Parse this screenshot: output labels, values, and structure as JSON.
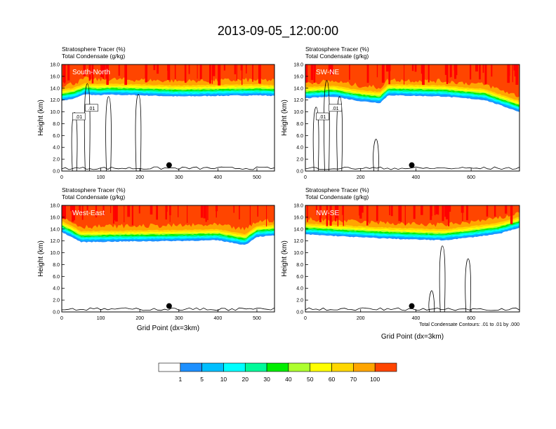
{
  "figure": {
    "title": "2013-09-05_12:00:00",
    "footnote": "Total Condensate Contours: .01 to .01 by .000"
  },
  "colorbar": {
    "labels": [
      "1",
      "5",
      "10",
      "20",
      "30",
      "40",
      "50",
      "60",
      "70",
      "100"
    ],
    "colors": [
      "#ffffff",
      "#1e90ff",
      "#00bfff",
      "#00ffff",
      "#00fa9a",
      "#00ee00",
      "#adff2f",
      "#ffff00",
      "#ffd700",
      "#ffa500",
      "#ff4500",
      "#ff0000"
    ]
  },
  "chart_data": [
    {
      "type": "heatmap",
      "panel_label": "South-North",
      "subtitle_line1": "Stratosphere Tracer   (%)",
      "subtitle_line2": "Total Condensate   (g/kg)",
      "xlabel": "",
      "ylabel": "Height (km)",
      "xlim": [
        0,
        545
      ],
      "ylim": [
        0,
        18
      ],
      "xticks": [
        "0",
        "100",
        "200",
        "300",
        "400",
        "500"
      ],
      "yticks": [
        "0.0",
        "2.0",
        "4.0",
        "6.0",
        "8.0",
        "10.0",
        "12.0",
        "14.0",
        "16.0",
        "18.0"
      ],
      "contour_labels": [
        ".01",
        ".01"
      ],
      "marker_x": 275,
      "marker_y": 1.0,
      "tracer_base_km": [
        [
          0,
          11.9
        ],
        [
          30,
          12.2
        ],
        [
          60,
          13.0
        ],
        [
          90,
          12.8
        ],
        [
          120,
          12.9
        ],
        [
          200,
          12.8
        ],
        [
          300,
          12.6
        ],
        [
          400,
          12.7
        ],
        [
          500,
          12.8
        ],
        [
          545,
          12.7
        ]
      ]
    },
    {
      "type": "heatmap",
      "panel_label": "SW-NE",
      "subtitle_line1": "Stratosphere Tracer   (%)",
      "subtitle_line2": "Total Condensate   (g/kg)",
      "xlabel": "",
      "ylabel": "Height (km)",
      "xlim": [
        0,
        775
      ],
      "ylim": [
        0,
        18
      ],
      "xticks": [
        "0",
        "200",
        "400",
        "600"
      ],
      "yticks": [
        "0.0",
        "2.0",
        "4.0",
        "6.0",
        "8.0",
        "10.0",
        "12.0",
        "14.0",
        "16.0",
        "18.0"
      ],
      "contour_labels": [
        ".01",
        ".01"
      ],
      "marker_x": 385,
      "marker_y": 1.0,
      "tracer_base_km": [
        [
          0,
          12.3
        ],
        [
          100,
          12.6
        ],
        [
          200,
          11.8
        ],
        [
          270,
          11.5
        ],
        [
          300,
          12.8
        ],
        [
          500,
          12.6
        ],
        [
          650,
          12.0
        ],
        [
          775,
          10.0
        ]
      ]
    },
    {
      "type": "heatmap",
      "panel_label": "West-East",
      "subtitle_line1": "Stratosphere Tracer   (%)",
      "subtitle_line2": "Total Condensate   (g/kg)",
      "xlabel": "Grid Point (dx=3km)",
      "ylabel": "Height (km)",
      "xlim": [
        0,
        545
      ],
      "ylim": [
        0,
        18
      ],
      "xticks": [
        "0",
        "100",
        "200",
        "300",
        "400",
        "500"
      ],
      "yticks": [
        "0.0",
        "2.0",
        "4.0",
        "6.0",
        "8.0",
        "10.0",
        "12.0",
        "14.0",
        "16.0",
        "18.0"
      ],
      "contour_labels": [],
      "marker_x": 275,
      "marker_y": 1.0,
      "tracer_base_km": [
        [
          0,
          13.5
        ],
        [
          50,
          11.8
        ],
        [
          150,
          11.9
        ],
        [
          300,
          12.0
        ],
        [
          400,
          12.1
        ],
        [
          470,
          11.3
        ],
        [
          500,
          12.7
        ],
        [
          545,
          12.9
        ]
      ]
    },
    {
      "type": "heatmap",
      "panel_label": "NW-SE",
      "subtitle_line1": "Stratosphere Tracer   (%)",
      "subtitle_line2": "Total Condensate   (g/kg)",
      "xlabel": "Grid Point (dx=3km)",
      "ylabel": "Height (km)",
      "xlim": [
        0,
        775
      ],
      "ylim": [
        0,
        18
      ],
      "xticks": [
        "0",
        "200",
        "400",
        "600"
      ],
      "yticks": [
        "0.0",
        "2.0",
        "4.0",
        "6.0",
        "8.0",
        "10.0",
        "12.0",
        "14.0",
        "16.0",
        "18.0"
      ],
      "contour_labels": [],
      "marker_x": 385,
      "marker_y": 1.0,
      "tracer_base_km": [
        [
          0,
          13.1
        ],
        [
          200,
          12.6
        ],
        [
          350,
          12.3
        ],
        [
          500,
          12.1
        ],
        [
          600,
          12.6
        ],
        [
          700,
          13.2
        ],
        [
          775,
          14.2
        ]
      ]
    }
  ]
}
